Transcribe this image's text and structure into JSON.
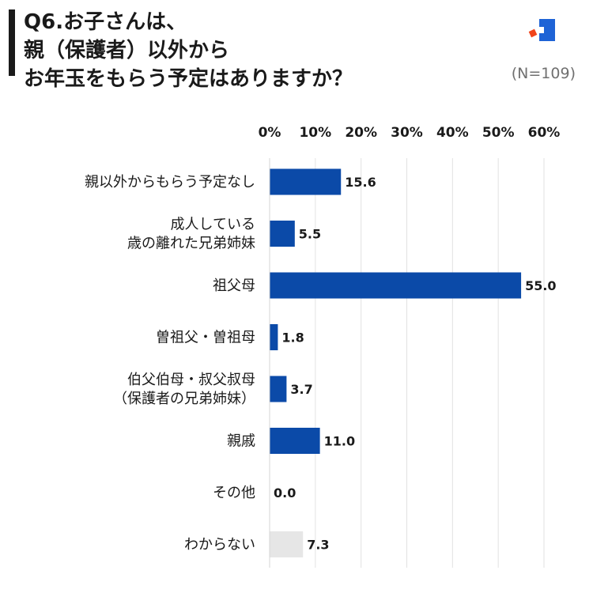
{
  "header": {
    "title_lines": [
      "Q6.お子さんは、",
      "親（保護者）以外から",
      "お年玉をもらう予定はありますか？"
    ],
    "sample_size": "(N=109)"
  },
  "colors": {
    "primary": "#0b4aa8",
    "muted": "#e6e6e6",
    "accent": "#f0451c",
    "logo": "#1e63d6"
  },
  "icons": {
    "logo": "brand-logo-icon"
  },
  "chart_data": {
    "type": "bar",
    "orientation": "horizontal",
    "title": "",
    "xlabel": "",
    "ylabel": "",
    "xlim": [
      0,
      60
    ],
    "ticks": [
      "0%",
      "10%",
      "20%",
      "30%",
      "40%",
      "50%",
      "60%"
    ],
    "grid": true,
    "categories": [
      [
        "親以外からもらう予定なし"
      ],
      [
        "成人している",
        "歳の離れた兄弟姉妹"
      ],
      [
        "祖父母"
      ],
      [
        "曽祖父・曽祖母"
      ],
      [
        "伯父伯母・叔父叔母",
        "（保護者の兄弟姉妹）"
      ],
      [
        "親戚"
      ],
      [
        "その他"
      ],
      [
        "わからない"
      ]
    ],
    "values": [
      15.6,
      5.5,
      55.0,
      1.8,
      3.7,
      11.0,
      0.0,
      7.3
    ],
    "value_labels": [
      "15.6",
      "5.5",
      "55.0",
      "1.8",
      "3.7",
      "11.0",
      "0.0",
      "7.3"
    ],
    "bar_colors": [
      "#0b4aa8",
      "#0b4aa8",
      "#0b4aa8",
      "#0b4aa8",
      "#0b4aa8",
      "#0b4aa8",
      "#0b4aa8",
      "#e6e6e6"
    ]
  }
}
